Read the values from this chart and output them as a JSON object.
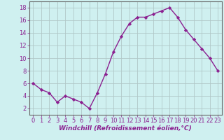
{
  "x": [
    0,
    1,
    2,
    3,
    4,
    5,
    6,
    7,
    8,
    9,
    10,
    11,
    12,
    13,
    14,
    15,
    16,
    17,
    18,
    19,
    20,
    21,
    22,
    23
  ],
  "y": [
    6.0,
    5.0,
    4.5,
    3.0,
    4.0,
    3.5,
    3.0,
    2.0,
    4.5,
    7.5,
    11.0,
    13.5,
    15.5,
    16.5,
    16.5,
    17.0,
    17.5,
    18.0,
    16.5,
    14.5,
    13.0,
    11.5,
    10.0,
    8.0
  ],
  "line_color": "#8b2090",
  "marker": "D",
  "marker_size": 2.2,
  "line_width": 1.0,
  "xlabel": "Windchill (Refroidissement éolien,°C)",
  "xlabel_fontsize": 6.5,
  "yticks": [
    2,
    4,
    6,
    8,
    10,
    12,
    14,
    16,
    18
  ],
  "xlim": [
    -0.5,
    23.5
  ],
  "ylim": [
    1.0,
    19.0
  ],
  "background_color": "#cff0f0",
  "grid_color": "#b0c8c8",
  "tick_fontsize": 6.0
}
